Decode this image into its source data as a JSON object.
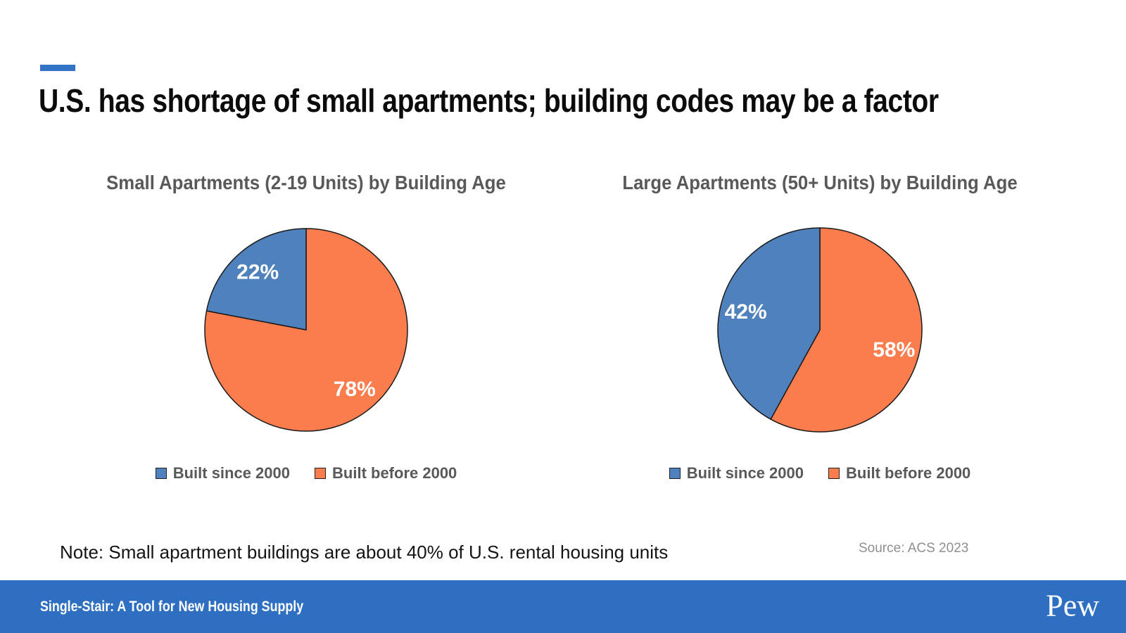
{
  "header": {
    "title": "U.S. has shortage of small apartments; building codes may be a factor"
  },
  "chart_data": [
    {
      "type": "pie",
      "title": "Small Apartments (2-19 Units) by Building Age",
      "start_angle_deg": 0,
      "direction": "clockwise",
      "slices": [
        {
          "label": "Built before 2000",
          "value": 78,
          "display": "78%",
          "color": "#FB7D4D"
        },
        {
          "label": "Built since 2000",
          "value": 22,
          "display": "22%",
          "color": "#4F81BD"
        }
      ],
      "legend_position": "bottom",
      "legend": [
        {
          "label": "Built since 2000",
          "color": "#4F81BD"
        },
        {
          "label": "Built before 2000",
          "color": "#FB7D4D"
        }
      ]
    },
    {
      "type": "pie",
      "title": "Large Apartments (50+ Units) by Building Age",
      "start_angle_deg": 0,
      "direction": "clockwise",
      "slices": [
        {
          "label": "Built before 2000",
          "value": 58,
          "display": "58%",
          "color": "#FB7D4D"
        },
        {
          "label": "Built since 2000",
          "value": 42,
          "display": "42%",
          "color": "#4F81BD"
        }
      ],
      "legend_position": "bottom",
      "legend": [
        {
          "label": "Built since 2000",
          "color": "#4F81BD"
        },
        {
          "label": "Built before 2000",
          "color": "#FB7D4D"
        }
      ]
    }
  ],
  "note": "Note: Small apartment buildings are about 40% of U.S. rental housing units",
  "source": "Source: ACS 2023",
  "footer": {
    "title": "Single-Stair: A Tool for New Housing Supply",
    "logo": "Pew"
  },
  "colors": {
    "accent_dash": "#3273C8",
    "footer_background": "#2F6FC2",
    "slice_since_2000": "#4F81BD",
    "slice_before_2000": "#FB7D4D",
    "pie_outline": "#1A1A1A",
    "chart_title_text": "#595959",
    "legend_text": "#595959",
    "pie_label_text": "#FFFFFF",
    "source_text": "#8F8F8F"
  }
}
